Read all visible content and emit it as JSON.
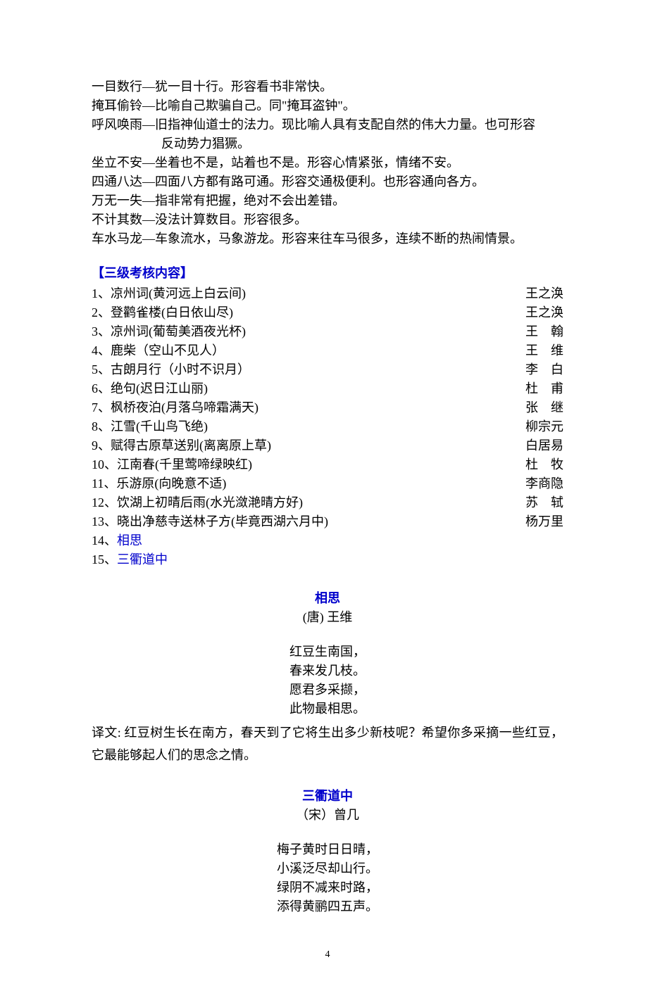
{
  "idioms": [
    {
      "term": "一目数行",
      "def": "犹一目十行。形容看书非常快。"
    },
    {
      "term": "掩耳偷铃",
      "def": "比喻自己欺骗自己。同\"掩耳盗钟\"。"
    },
    {
      "term": "呼风唤雨",
      "def": "旧指神仙道士的法力。现比喻人具有支配自然的伟大力量。也可形容",
      "cont": "反动势力猖獗。"
    },
    {
      "term": "坐立不安",
      "def": "坐着也不是，站着也不是。形容心情紧张，情绪不安。"
    },
    {
      "term": "四通八达",
      "def": "四面八方都有路可通。形容交通极便利。也形容通向各方。"
    },
    {
      "term": "万无一失",
      "def": "指非常有把握，绝对不会出差错。"
    },
    {
      "term": "不计其数",
      "def": "没法计算数目。形容很多。"
    },
    {
      "term": "车水马龙",
      "def": "车象流水，马象游龙。形容来往车马很多，连续不断的热闹情景。"
    }
  ],
  "section_title": "【三级考核内容】",
  "poem_list": [
    {
      "idx": "1、",
      "title": "凉州词(黄河远上白云间)",
      "author": "王之涣"
    },
    {
      "idx": "2、",
      "title": "登鹳雀楼(白日依山尽)",
      "author": "王之涣"
    },
    {
      "idx": "3、",
      "title": "凉州词(葡萄美酒夜光杯)",
      "author": "王　翰"
    },
    {
      "idx": "4、",
      "title": "鹿柴（空山不见人）",
      "author": "王　维"
    },
    {
      "idx": "5、",
      "title": "古朗月行（小时不识月）",
      "author": "李　白"
    },
    {
      "idx": "6、",
      "title": "绝句(迟日江山丽)",
      "author": "杜　甫"
    },
    {
      "idx": "7、",
      "title": "枫桥夜泊(月落乌啼霜满天)",
      "author": "张　继"
    },
    {
      "idx": "8、",
      "title": "江雪(千山鸟飞绝)",
      "author": "柳宗元"
    },
    {
      "idx": "9、",
      "title": "赋得古原草送别(离离原上草)",
      "author": "白居易"
    },
    {
      "idx": "10、",
      "title": "江南春(千里莺啼绿映红)",
      "author": "杜　牧"
    },
    {
      "idx": "11、",
      "title": "乐游原(向晚意不适)",
      "author": "李商隐"
    },
    {
      "idx": "12、",
      "title": "饮湖上初晴后雨(水光潋滟晴方好)",
      "author": "苏　轼"
    },
    {
      "idx": "13、",
      "title": "晓出净慈寺送林子方(毕竟西湖六月中)",
      "author": "杨万里"
    }
  ],
  "poem_list_blue": [
    {
      "idx": "14、",
      "title": "相思"
    },
    {
      "idx": "15、",
      "title": "三衢道中"
    }
  ],
  "poem1": {
    "title": "相思",
    "author": "(唐) 王维",
    "lines": [
      "红豆生南国，",
      "春来发几枝。",
      "愿君多采撷，",
      "此物最相思。"
    ],
    "translation": "译文: 红豆树生长在南方，春天到了它将生出多少新枝呢？希望你多采摘一些红豆，它最能够起人们的思念之情。"
  },
  "poem2": {
    "title": "三衢道中",
    "author": "（宋）曾几",
    "lines": [
      "梅子黄时日日晴，",
      "小溪泛尽却山行。",
      "绿阴不减来时路，",
      "添得黄鹂四五声。"
    ]
  },
  "page_number": "4"
}
